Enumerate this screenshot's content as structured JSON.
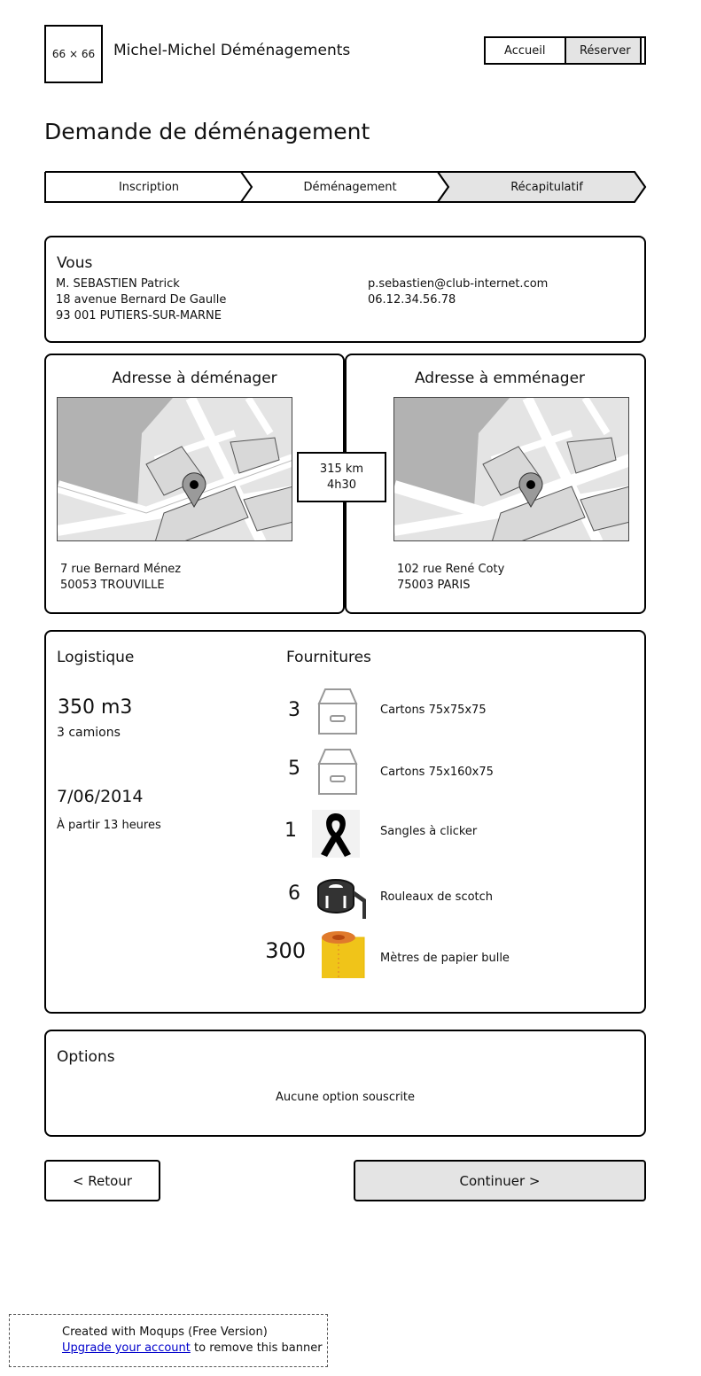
{
  "header": {
    "logo_text": "66 × 66",
    "brand": "Michel-Michel Déménagements",
    "nav": [
      {
        "label": "Accueil"
      },
      {
        "label": "Réserver"
      }
    ]
  },
  "page_title": "Demande de déménagement",
  "steps": [
    {
      "label": "Inscription"
    },
    {
      "label": "Déménagement"
    },
    {
      "label": "Récapitulatif"
    }
  ],
  "vous": {
    "title": "Vous",
    "name": "M. SEBASTIEN Patrick",
    "address1": "18 avenue Bernard De Gaulle",
    "address2": "93 001 PUTIERS-SUR-MARNE",
    "email": "p.sebastien@club-internet.com",
    "phone": "06.12.34.56.78"
  },
  "from": {
    "title": "Adresse à déménager",
    "line1": "7 rue Bernard Ménez",
    "line2": "50053 TROUVILLE"
  },
  "to": {
    "title": "Adresse à emménager",
    "line1": "102 rue René Coty",
    "line2": "75003 PARIS"
  },
  "distance": {
    "km": "315 km",
    "time": "4h30"
  },
  "logistique": {
    "title": "Logistique",
    "volume": "350 m3",
    "trucks": "3 camions",
    "date": "7/06/2014",
    "time": "À partir 13 heures"
  },
  "fournitures": {
    "title": "Fournitures",
    "items": [
      {
        "qty": "3",
        "label": "Cartons 75x75x75",
        "icon": "box-icon"
      },
      {
        "qty": "5",
        "label": "Cartons 75x160x75",
        "icon": "box-icon"
      },
      {
        "qty": "1",
        "label": "Sangles à clicker",
        "icon": "ribbon-icon"
      },
      {
        "qty": "6",
        "label": "Rouleaux de scotch",
        "icon": "tape-roll-icon"
      },
      {
        "qty": "300",
        "label": "Mètres de papier bulle",
        "icon": "bubble-wrap-roll-icon"
      }
    ]
  },
  "options": {
    "title": "Options",
    "text": "Aucune option souscrite"
  },
  "buttons": {
    "back": "< Retour",
    "continue": "Continuer >"
  },
  "banner": {
    "line1": "Created with Moqups (Free Version)",
    "link": "Upgrade your account",
    "rest": " to remove this banner"
  }
}
